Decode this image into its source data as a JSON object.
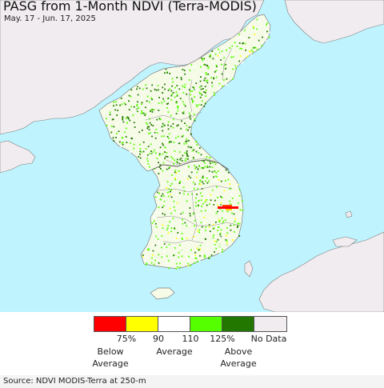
{
  "title": "PASG from 1-Month NDVI (Terra-MODIS)",
  "date_range": "May. 17 - Jun. 17, 2025",
  "colors": {
    "sea": "#bff4ff",
    "land_outside": "#f0ecef",
    "land_base": "#f6fbe8",
    "border": "#7d7d7d",
    "below_75": "#ff0000",
    "range_75_90": "#ffff00",
    "range_90_110": "#ffffff",
    "range_110_125": "#55ff00",
    "above_125": "#227700",
    "no_data": "#f0ecef"
  },
  "legend": {
    "swatches": [
      {
        "name": "below-75-swatch",
        "color": "#ff0000"
      },
      {
        "name": "75-90-swatch",
        "color": "#ffff00"
      },
      {
        "name": "90-110-swatch",
        "color": "#ffffff"
      },
      {
        "name": "110-125-swatch",
        "color": "#55ff00"
      },
      {
        "name": "above-125-swatch",
        "color": "#227700"
      },
      {
        "name": "no-data-swatch",
        "color": "#f0ecef"
      }
    ],
    "ticks": [
      "75%",
      "90",
      "110",
      "125%"
    ],
    "below_label": [
      "Below",
      "Average"
    ],
    "average_label": "Average",
    "above_label": [
      "Above",
      "Average"
    ],
    "no_data_label": "No Data"
  },
  "source": "Source: NDVI MODIS-Terra at 250-m"
}
